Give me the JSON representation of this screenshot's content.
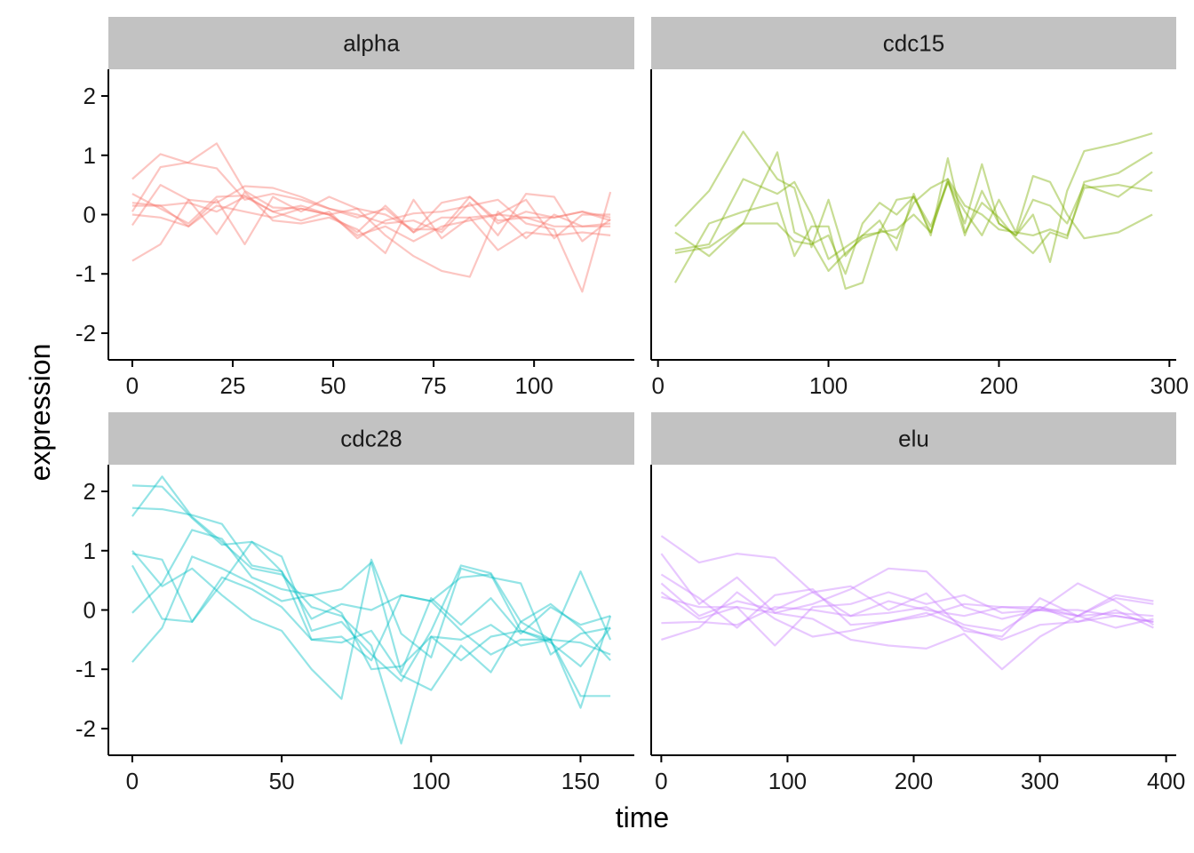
{
  "chart_data": {
    "type": "line",
    "layout": "facet_wrap",
    "xlabel": "time",
    "ylabel": "expression",
    "ylim": [
      -2.45,
      2.45
    ],
    "y_ticks": [
      -2,
      -1,
      0,
      1,
      2
    ],
    "y_tick_labels": [
      "-2",
      "-1",
      "0",
      "1",
      "2"
    ],
    "grid": false,
    "panels": [
      {
        "name": "alpha",
        "color": "#F8766D",
        "xlim": [
          -5.95,
          124.95
        ],
        "x_ticks": [
          0,
          25,
          50,
          75,
          100
        ],
        "x_tick_labels": [
          "0",
          "25",
          "50",
          "75",
          "100"
        ],
        "x": [
          0,
          7,
          14,
          21,
          28,
          35,
          42,
          49,
          56,
          63,
          70,
          77,
          84,
          91,
          98,
          105,
          112,
          119
        ],
        "series": [
          {
            "values": [
              0.6,
              1.02,
              0.87,
              0.78,
              0.25,
              0.35,
              0.25,
              0.1,
              -0.05,
              0.1,
              -0.3,
              0.2,
              0.3,
              -0.15,
              0.05,
              -0.05,
              0.05,
              -0.1
            ]
          },
          {
            "values": [
              0.05,
              0.8,
              0.88,
              1.2,
              0.4,
              0.12,
              0.1,
              0.0,
              -0.35,
              -0.2,
              -0.45,
              -0.2,
              -0.1,
              0.0,
              0.25,
              -0.4,
              0.0,
              0.0
            ]
          },
          {
            "values": [
              -0.78,
              -0.5,
              0.25,
              0.2,
              0.48,
              0.45,
              0.3,
              0.1,
              0.0,
              -0.15,
              -0.1,
              -0.3,
              0.2,
              -0.35,
              0.35,
              0.3,
              -0.45,
              -0.08
            ]
          },
          {
            "values": [
              0.35,
              0.1,
              -0.15,
              0.3,
              0.32,
              0.05,
              -0.1,
              0.05,
              -0.4,
              -0.1,
              0.02,
              0.05,
              0.15,
              0.25,
              -0.15,
              -0.25,
              -1.3,
              0.38
            ]
          },
          {
            "values": [
              -0.18,
              0.5,
              0.25,
              -0.33,
              0.38,
              -0.1,
              -0.15,
              -0.05,
              -0.25,
              -0.65,
              0.25,
              -0.4,
              -0.05,
              -0.6,
              -0.3,
              -0.35,
              -0.3,
              -0.35
            ]
          },
          {
            "values": [
              0.15,
              0.15,
              -0.2,
              0.25,
              -0.5,
              0.3,
              0.05,
              0.3,
              0.1,
              0.0,
              -0.25,
              -0.25,
              0.3,
              -0.1,
              -0.05,
              -0.05,
              0.05,
              -0.05
            ]
          },
          {
            "values": [
              0.0,
              -0.05,
              -0.2,
              0.15,
              0.05,
              -0.05,
              0.1,
              0.0,
              -0.3,
              0.15,
              -0.3,
              -0.05,
              -0.05,
              0.0,
              -0.05,
              -0.2,
              -0.2,
              -0.15
            ]
          },
          {
            "values": [
              0.2,
              0.15,
              0.2,
              0.05,
              0.3,
              0.05,
              0.15,
              0.0,
              0.1,
              -0.35,
              -0.7,
              -0.95,
              -1.05,
              0.05,
              -0.4,
              0.0,
              -0.2,
              -0.2
            ]
          }
        ]
      },
      {
        "name": "cdc15",
        "color": "#7CAE00",
        "xlim": [
          -4,
          304
        ],
        "x_ticks": [
          0,
          100,
          200,
          300
        ],
        "x_tick_labels": [
          "0",
          "100",
          "200",
          "300"
        ],
        "x": [
          10,
          30,
          50,
          70,
          80,
          90,
          100,
          110,
          120,
          130,
          140,
          150,
          160,
          170,
          180,
          190,
          200,
          210,
          220,
          230,
          240,
          250,
          270,
          290
        ],
        "series": [
          {
            "values": [
              -0.2,
              0.4,
              1.4,
              0.6,
              0.45,
              -0.55,
              0.25,
              -0.7,
              -0.35,
              -0.3,
              0.25,
              0.3,
              -0.2,
              0.55,
              -0.15,
              0.85,
              -0.15,
              -0.35,
              0.0,
              -0.8,
              0.4,
              1.07,
              1.2,
              1.37
            ]
          },
          {
            "values": [
              -0.6,
              -0.5,
              0.6,
              0.35,
              0.55,
              0.0,
              -0.75,
              -0.55,
              -0.35,
              -0.1,
              -0.6,
              0.35,
              -0.35,
              0.95,
              -0.3,
              0.2,
              -0.05,
              -0.4,
              -0.65,
              -0.3,
              -0.4,
              0.55,
              0.7,
              1.05
            ]
          },
          {
            "values": [
              -1.15,
              -0.15,
              0.05,
              0.2,
              -0.7,
              -0.2,
              -0.2,
              -1.25,
              -1.15,
              -0.25,
              -0.4,
              0.2,
              0.45,
              0.6,
              0.15,
              0.0,
              -0.25,
              -0.3,
              -0.35,
              -0.25,
              -0.35,
              0.45,
              0.5,
              0.4
            ]
          },
          {
            "values": [
              -0.3,
              -0.7,
              -0.15,
              1.05,
              -0.3,
              -0.45,
              -0.95,
              -0.65,
              -0.4,
              -0.3,
              -0.25,
              0.0,
              -0.3,
              0.6,
              -0.35,
              0.4,
              -0.15,
              -0.35,
              0.25,
              0.15,
              -0.15,
              0.5,
              0.3,
              0.72
            ]
          },
          {
            "values": [
              -0.65,
              -0.55,
              -0.15,
              -0.15,
              -0.45,
              -0.5,
              -0.35,
              -1.0,
              -0.15,
              0.2,
              0.0,
              0.3,
              -0.3,
              0.55,
              0.05,
              -0.35,
              0.25,
              -0.3,
              0.65,
              0.55,
              0.0,
              -0.4,
              -0.3,
              0.0
            ]
          }
        ]
      },
      {
        "name": "cdc28",
        "color": "#00BFC4",
        "xlim": [
          -8,
          168
        ],
        "x_ticks": [
          0,
          50,
          100,
          150
        ],
        "x_tick_labels": [
          "0",
          "50",
          "100",
          "150"
        ],
        "x": [
          0,
          10,
          20,
          30,
          40,
          50,
          60,
          70,
          80,
          90,
          100,
          110,
          120,
          130,
          140,
          150,
          160
        ],
        "series": [
          {
            "values": [
              2.1,
              2.08,
              1.55,
              1.1,
              1.15,
              0.9,
              -0.35,
              -0.2,
              -0.75,
              -1.2,
              -0.35,
              0.75,
              0.62,
              -0.2,
              -0.5,
              -1.65,
              -0.1
            ]
          },
          {
            "values": [
              1.72,
              1.7,
              1.6,
              1.45,
              0.75,
              0.65,
              -0.5,
              -0.45,
              -0.85,
              0.25,
              0.15,
              0.55,
              0.6,
              -0.35,
              -0.55,
              -0.95,
              -0.3
            ]
          },
          {
            "values": [
              1.58,
              2.25,
              1.57,
              1.15,
              0.7,
              0.6,
              0.05,
              -0.1,
              -0.6,
              -2.25,
              -0.45,
              -0.85,
              -0.45,
              -0.35,
              -0.5,
              -0.55,
              -0.75
            ]
          },
          {
            "values": [
              0.95,
              0.85,
              -0.2,
              0.55,
              0.35,
              0.05,
              -0.5,
              -0.55,
              -0.35,
              -1.1,
              -1.35,
              -0.6,
              -1.05,
              -0.2,
              0.1,
              -0.3,
              -0.85
            ]
          },
          {
            "values": [
              0.75,
              -0.15,
              -0.2,
              0.45,
              1.15,
              0.65,
              -0.15,
              0.1,
              0.0,
              0.25,
              0.15,
              -0.35,
              -0.75,
              -0.5,
              -0.5,
              0.65,
              -0.5
            ]
          },
          {
            "values": [
              -0.05,
              0.45,
              1.35,
              1.2,
              0.55,
              0.35,
              0.25,
              -0.05,
              -1.0,
              -0.95,
              -0.45,
              -0.5,
              -0.25,
              -0.6,
              -0.5,
              -1.45,
              -1.45
            ]
          },
          {
            "values": [
              -0.88,
              -0.3,
              0.9,
              0.7,
              0.45,
              0.15,
              0.25,
              0.35,
              0.8,
              -1.05,
              0.2,
              -0.25,
              0.2,
              -0.4,
              0.05,
              -0.25,
              -0.1
            ]
          },
          {
            "values": [
              1.0,
              0.4,
              0.7,
              0.25,
              -0.15,
              -0.35,
              -1.0,
              -1.5,
              0.85,
              -0.4,
              -0.8,
              0.7,
              0.55,
              0.45,
              -0.75,
              -0.4,
              -0.3
            ]
          }
        ]
      },
      {
        "name": "elu",
        "color": "#C77CFF",
        "xlim": [
          -8,
          408
        ],
        "x_ticks": [
          0,
          100,
          200,
          300,
          400
        ],
        "x_tick_labels": [
          "0",
          "100",
          "200",
          "300",
          "400"
        ],
        "x": [
          0,
          30,
          60,
          90,
          120,
          150,
          180,
          210,
          240,
          270,
          300,
          330,
          360,
          390
        ],
        "series": [
          {
            "values": [
              1.25,
              0.8,
              0.95,
              0.88,
              0.3,
              0.4,
              0.0,
              0.28,
              -0.35,
              -0.45,
              0.2,
              -0.1,
              0.25,
              0.15
            ]
          },
          {
            "values": [
              0.95,
              0.1,
              0.55,
              -0.05,
              0.1,
              0.35,
              0.7,
              0.65,
              0.05,
              -0.15,
              0.0,
              0.45,
              0.15,
              -0.25
            ]
          },
          {
            "values": [
              0.45,
              -0.1,
              0.15,
              0.0,
              0.3,
              -0.1,
              0.15,
              0.0,
              -0.1,
              0.05,
              0.05,
              -0.2,
              0.0,
              -0.3
            ]
          },
          {
            "values": [
              0.3,
              -0.15,
              0.05,
              -0.6,
              0.05,
              0.1,
              0.3,
              0.1,
              0.25,
              -0.05,
              0.0,
              0.0,
              -0.1,
              -0.2
            ]
          },
          {
            "values": [
              0.22,
              0.05,
              0.05,
              -0.05,
              -0.15,
              -0.5,
              -0.6,
              -0.65,
              -0.4,
              -1.0,
              -0.45,
              -0.1,
              -0.05,
              -0.1
            ]
          },
          {
            "values": [
              -0.22,
              -0.2,
              -0.25,
              0.05,
              0.0,
              -0.1,
              -0.05,
              0.05,
              -0.25,
              -0.35,
              0.05,
              -0.1,
              -0.3,
              -0.15
            ]
          },
          {
            "values": [
              -0.5,
              -0.3,
              0.3,
              -0.15,
              -0.45,
              -0.35,
              -0.2,
              -0.05,
              -0.3,
              -0.5,
              -0.25,
              -0.2,
              -0.1,
              -0.2
            ]
          },
          {
            "values": [
              0.6,
              0.2,
              -0.3,
              0.25,
              0.35,
              -0.25,
              -0.2,
              -0.1,
              0.1,
              0.05,
              0.0,
              -0.1,
              0.2,
              0.1
            ]
          }
        ]
      }
    ]
  }
}
